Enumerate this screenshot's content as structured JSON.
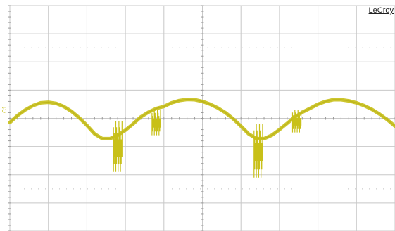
{
  "brand": "LeCroy",
  "channel": {
    "label": "C1",
    "color": "#c8c018"
  },
  "chart_data": {
    "type": "line",
    "title": "",
    "xlabel": "",
    "ylabel": "",
    "grid": true,
    "grid_color": "#c8c8c8",
    "divisions": {
      "x": 10,
      "y": 8
    },
    "xlim": [
      0,
      10
    ],
    "ylim": [
      -4,
      4
    ],
    "series": [
      {
        "name": "",
        "color": "#c8c018",
        "x": [
          0.0,
          0.2,
          0.4,
          0.6,
          0.8,
          1.0,
          1.2,
          1.4,
          1.6,
          1.8,
          2.0,
          2.2,
          2.4,
          2.6,
          2.8,
          3.0,
          3.2,
          3.4,
          3.6,
          3.8,
          4.0,
          4.2,
          4.4,
          4.6,
          4.8,
          5.0,
          5.2,
          5.4,
          5.6,
          5.8,
          6.0,
          6.2,
          6.4,
          6.6,
          6.8,
          7.0,
          7.2,
          7.4,
          7.6,
          7.8,
          8.0,
          8.2,
          8.4,
          8.6,
          8.8,
          9.0,
          9.2,
          9.4,
          9.6,
          9.8,
          10.0
        ],
        "values": [
          -0.15,
          0.1,
          0.3,
          0.45,
          0.55,
          0.57,
          0.53,
          0.42,
          0.25,
          0.02,
          -0.25,
          -0.55,
          -0.72,
          -0.72,
          -0.6,
          -0.42,
          -0.2,
          0.05,
          0.22,
          0.35,
          0.42,
          0.55,
          0.63,
          0.67,
          0.66,
          0.6,
          0.5,
          0.37,
          0.2,
          -0.02,
          -0.28,
          -0.55,
          -0.72,
          -0.72,
          -0.6,
          -0.4,
          -0.18,
          0.05,
          0.22,
          0.36,
          0.5,
          0.6,
          0.66,
          0.66,
          0.62,
          0.55,
          0.45,
          0.32,
          0.15,
          -0.05,
          -0.28
        ]
      }
    ],
    "glitches": [
      {
        "x": 2.8,
        "low": -1.9,
        "high": -0.1
      },
      {
        "x": 3.8,
        "low": -0.6,
        "high": 0.3
      },
      {
        "x": 6.45,
        "low": -2.1,
        "high": -0.2
      },
      {
        "x": 7.45,
        "low": -0.5,
        "high": 0.3
      }
    ]
  }
}
